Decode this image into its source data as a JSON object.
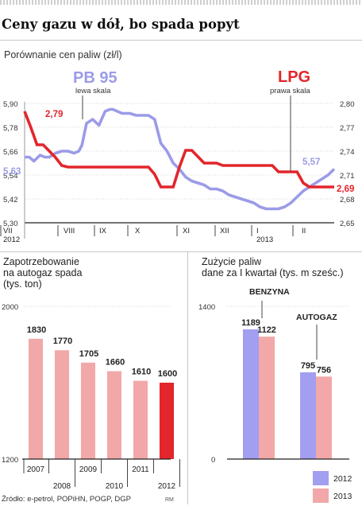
{
  "title": "Ceny gazu w dół, bo spada popyt",
  "source": "Źródło: e-petrol, POPiHN, POGP, DGP",
  "signature": "RM",
  "colors": {
    "pb95": "#9b9be8",
    "lpg": "#e2262b",
    "bar2012": "#a29ef0",
    "bar2013": "#f2a8a8",
    "highlight": "#e2262b"
  },
  "chart_data": [
    {
      "type": "line",
      "title": "Porównanie cen paliw (zł/l)",
      "x_labels": [
        "VII",
        "VIII",
        "IX",
        "X",
        "XI",
        "XII",
        "I",
        "II"
      ],
      "year_labels": [
        "2012",
        "2013"
      ],
      "left_axis": {
        "ticks": [
          "5,90",
          "5,78",
          "5,66",
          "5,54",
          "5,42",
          "5,30"
        ],
        "ylim": [
          5.3,
          5.9
        ]
      },
      "right_axis": {
        "ticks": [
          "2,80",
          "2,77",
          "2,74",
          "2,71",
          "2,68",
          "2,65"
        ],
        "ylim": [
          2.65,
          2.8
        ]
      },
      "series": [
        {
          "name": "PB 95",
          "note": "lewa skala",
          "axis": "left",
          "start_label": "5,63",
          "end_label": "5,57",
          "x": [
            0,
            1.5,
            3,
            5,
            6.5,
            8,
            10,
            12,
            14,
            16,
            17.5,
            18.5,
            20,
            22,
            24,
            26,
            27.5,
            28.5,
            30,
            31.5,
            34,
            36,
            38,
            40,
            42,
            44,
            46,
            48,
            50,
            52,
            54,
            56,
            58,
            60,
            62,
            64,
            66,
            68,
            70,
            72,
            74,
            76,
            78,
            80,
            82,
            84,
            86,
            88,
            90,
            92,
            94,
            96,
            98,
            100
          ],
          "y": [
            5.63,
            5.63,
            5.61,
            5.64,
            5.63,
            5.63,
            5.65,
            5.66,
            5.66,
            5.65,
            5.66,
            5.69,
            5.8,
            5.82,
            5.79,
            5.86,
            5.87,
            5.87,
            5.86,
            5.85,
            5.85,
            5.84,
            5.84,
            5.84,
            5.82,
            5.7,
            5.66,
            5.6,
            5.57,
            5.53,
            5.51,
            5.5,
            5.49,
            5.47,
            5.47,
            5.46,
            5.44,
            5.43,
            5.42,
            5.41,
            5.4,
            5.38,
            5.37,
            5.37,
            5.37,
            5.38,
            5.4,
            5.43,
            5.46,
            5.48,
            5.5,
            5.52,
            5.54,
            5.57
          ]
        },
        {
          "name": "LPG",
          "note": "prawa skala",
          "axis": "right",
          "start_label": "2,79",
          "end_label": "2,69",
          "x": [
            0,
            2,
            4,
            6,
            8,
            10,
            12,
            14,
            16,
            18,
            20,
            22,
            24,
            26,
            28,
            30,
            32,
            34,
            36,
            38,
            40,
            42,
            44,
            46,
            48,
            50,
            52,
            54,
            56,
            58,
            60,
            62,
            64,
            66,
            68,
            70,
            72,
            74,
            76,
            78,
            80,
            82,
            84,
            86,
            88,
            90,
            92,
            94,
            96,
            98,
            100
          ],
          "y": [
            2.79,
            2.77,
            2.748,
            2.748,
            2.74,
            2.732,
            2.722,
            2.72,
            2.72,
            2.72,
            2.72,
            2.72,
            2.72,
            2.72,
            2.72,
            2.72,
            2.72,
            2.72,
            2.72,
            2.72,
            2.72,
            2.711,
            2.695,
            2.695,
            2.695,
            2.72,
            2.741,
            2.741,
            2.733,
            2.725,
            2.725,
            2.725,
            2.722,
            2.722,
            2.722,
            2.722,
            2.722,
            2.722,
            2.722,
            2.722,
            2.722,
            2.714,
            2.714,
            2.714,
            2.714,
            2.7,
            2.695,
            2.695,
            2.695,
            2.695,
            2.695
          ]
        }
      ]
    },
    {
      "type": "bar",
      "title": "Zapotrzebowanie na autogaz spada (tys. ton)",
      "title_lines": [
        "Zapotrzebowanie",
        "na autogaz spada",
        "(tys. ton)"
      ],
      "categories": [
        "2007",
        "2008",
        "2009",
        "2010",
        "2011",
        "2012"
      ],
      "values": [
        1830,
        1770,
        1705,
        1660,
        1610,
        1600
      ],
      "value_labels": [
        "1830",
        "1770",
        "1705",
        "1660",
        "1610",
        "1600"
      ],
      "y_ticks": [
        "2000",
        "1200"
      ],
      "ylim": [
        1200,
        2000
      ]
    },
    {
      "type": "bar",
      "title": "Zużycie paliw dane za I kwartał (tys. m sześc.)",
      "title_lines": [
        "Zużycie paliw",
        "dane za I kwartał (tys. m sześc.)"
      ],
      "categories": [
        "BENZYNA",
        "AUTOGAZ"
      ],
      "series": [
        {
          "name": "2012",
          "values": [
            1189,
            795
          ],
          "labels": [
            "1189",
            "795"
          ]
        },
        {
          "name": "2013",
          "values": [
            1122,
            756
          ],
          "labels": [
            "1122",
            "756"
          ]
        }
      ],
      "y_ticks": [
        "1400",
        "0"
      ],
      "ylim": [
        0,
        1400
      ]
    }
  ]
}
